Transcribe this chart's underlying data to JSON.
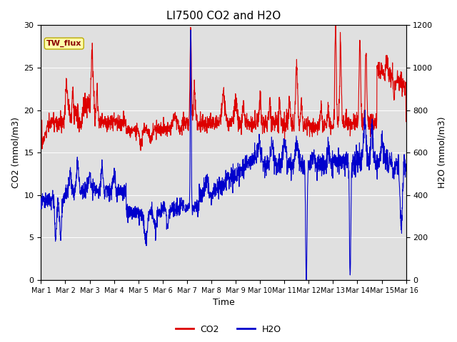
{
  "title": "LI7500 CO2 and H2O",
  "xlabel": "Time",
  "ylabel_left": "CO2 (mmol/m3)",
  "ylabel_right": "H2O (mmol/m3)",
  "xtick_labels": [
    "Mar 1",
    "Mar 2",
    "Mar 3",
    "Mar 4",
    "Mar 5",
    "Mar 6",
    "Mar 7",
    "Mar 8",
    "Mar 9",
    "Mar 10",
    "Mar 11",
    "Mar 12",
    "Mar 13",
    "Mar 14",
    "Mar 15",
    "Mar 16"
  ],
  "ylim_left": [
    0,
    30
  ],
  "ylim_right": [
    0,
    1200
  ],
  "co2_color": "#dd0000",
  "h2o_color": "#0000cc",
  "background_color": "#ffffff",
  "plot_bg_color": "#e0e0e0",
  "annotation_text": "TW_flux",
  "annotation_bg": "#ffffaa",
  "annotation_border": "#bbaa00",
  "legend_co2": "CO2",
  "legend_h2o": "H2O",
  "title_fontsize": 11,
  "axis_fontsize": 9,
  "tick_fontsize": 8,
  "linewidth": 0.8
}
